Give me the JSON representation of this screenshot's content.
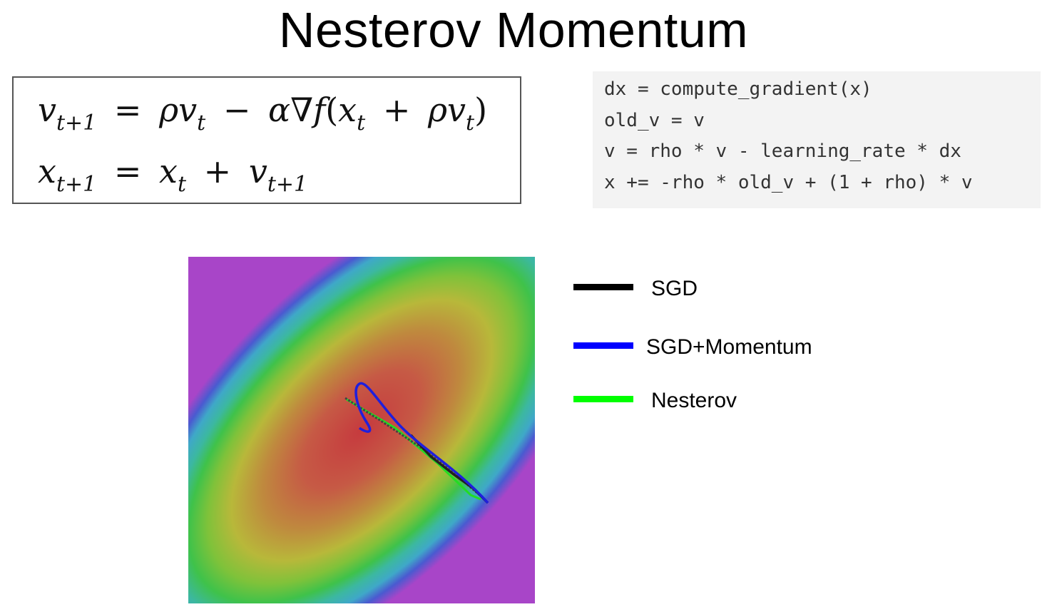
{
  "title": "Nesterov Momentum",
  "equations": {
    "line1": {
      "lhs_var": "v",
      "lhs_sub": "t+1",
      "eq": "=",
      "rho": "ρ",
      "v1": "v",
      "v1_sub": "t",
      "minus": "−",
      "alpha": "α",
      "nabla": "∇",
      "f": "f",
      "open": "(",
      "x": "x",
      "x_sub": "t",
      "plus": "+",
      "rho2": "ρ",
      "v2": "v",
      "v2_sub": "t",
      "close": ")"
    },
    "line2": {
      "lhs_var": "x",
      "lhs_sub": "t+1",
      "eq": "=",
      "x": "x",
      "x_sub": "t",
      "plus": "+",
      "v": "v",
      "v_sub": "t+1"
    }
  },
  "code_lines": [
    "dx = compute_gradient(x)",
    "old_v = v",
    "v = rho * v - learning_rate * dx",
    "x += -rho * old_v + (1 + rho) * v"
  ],
  "legend": [
    {
      "label": "SGD",
      "color": "#000000"
    },
    {
      "label": "SGD+Momentum",
      "color": "#0000ff"
    },
    {
      "label": "Nesterov",
      "color": "#00ff00"
    }
  ],
  "colors": {
    "code_bg": "#f3f3f3",
    "eq_border": "#555555"
  }
}
